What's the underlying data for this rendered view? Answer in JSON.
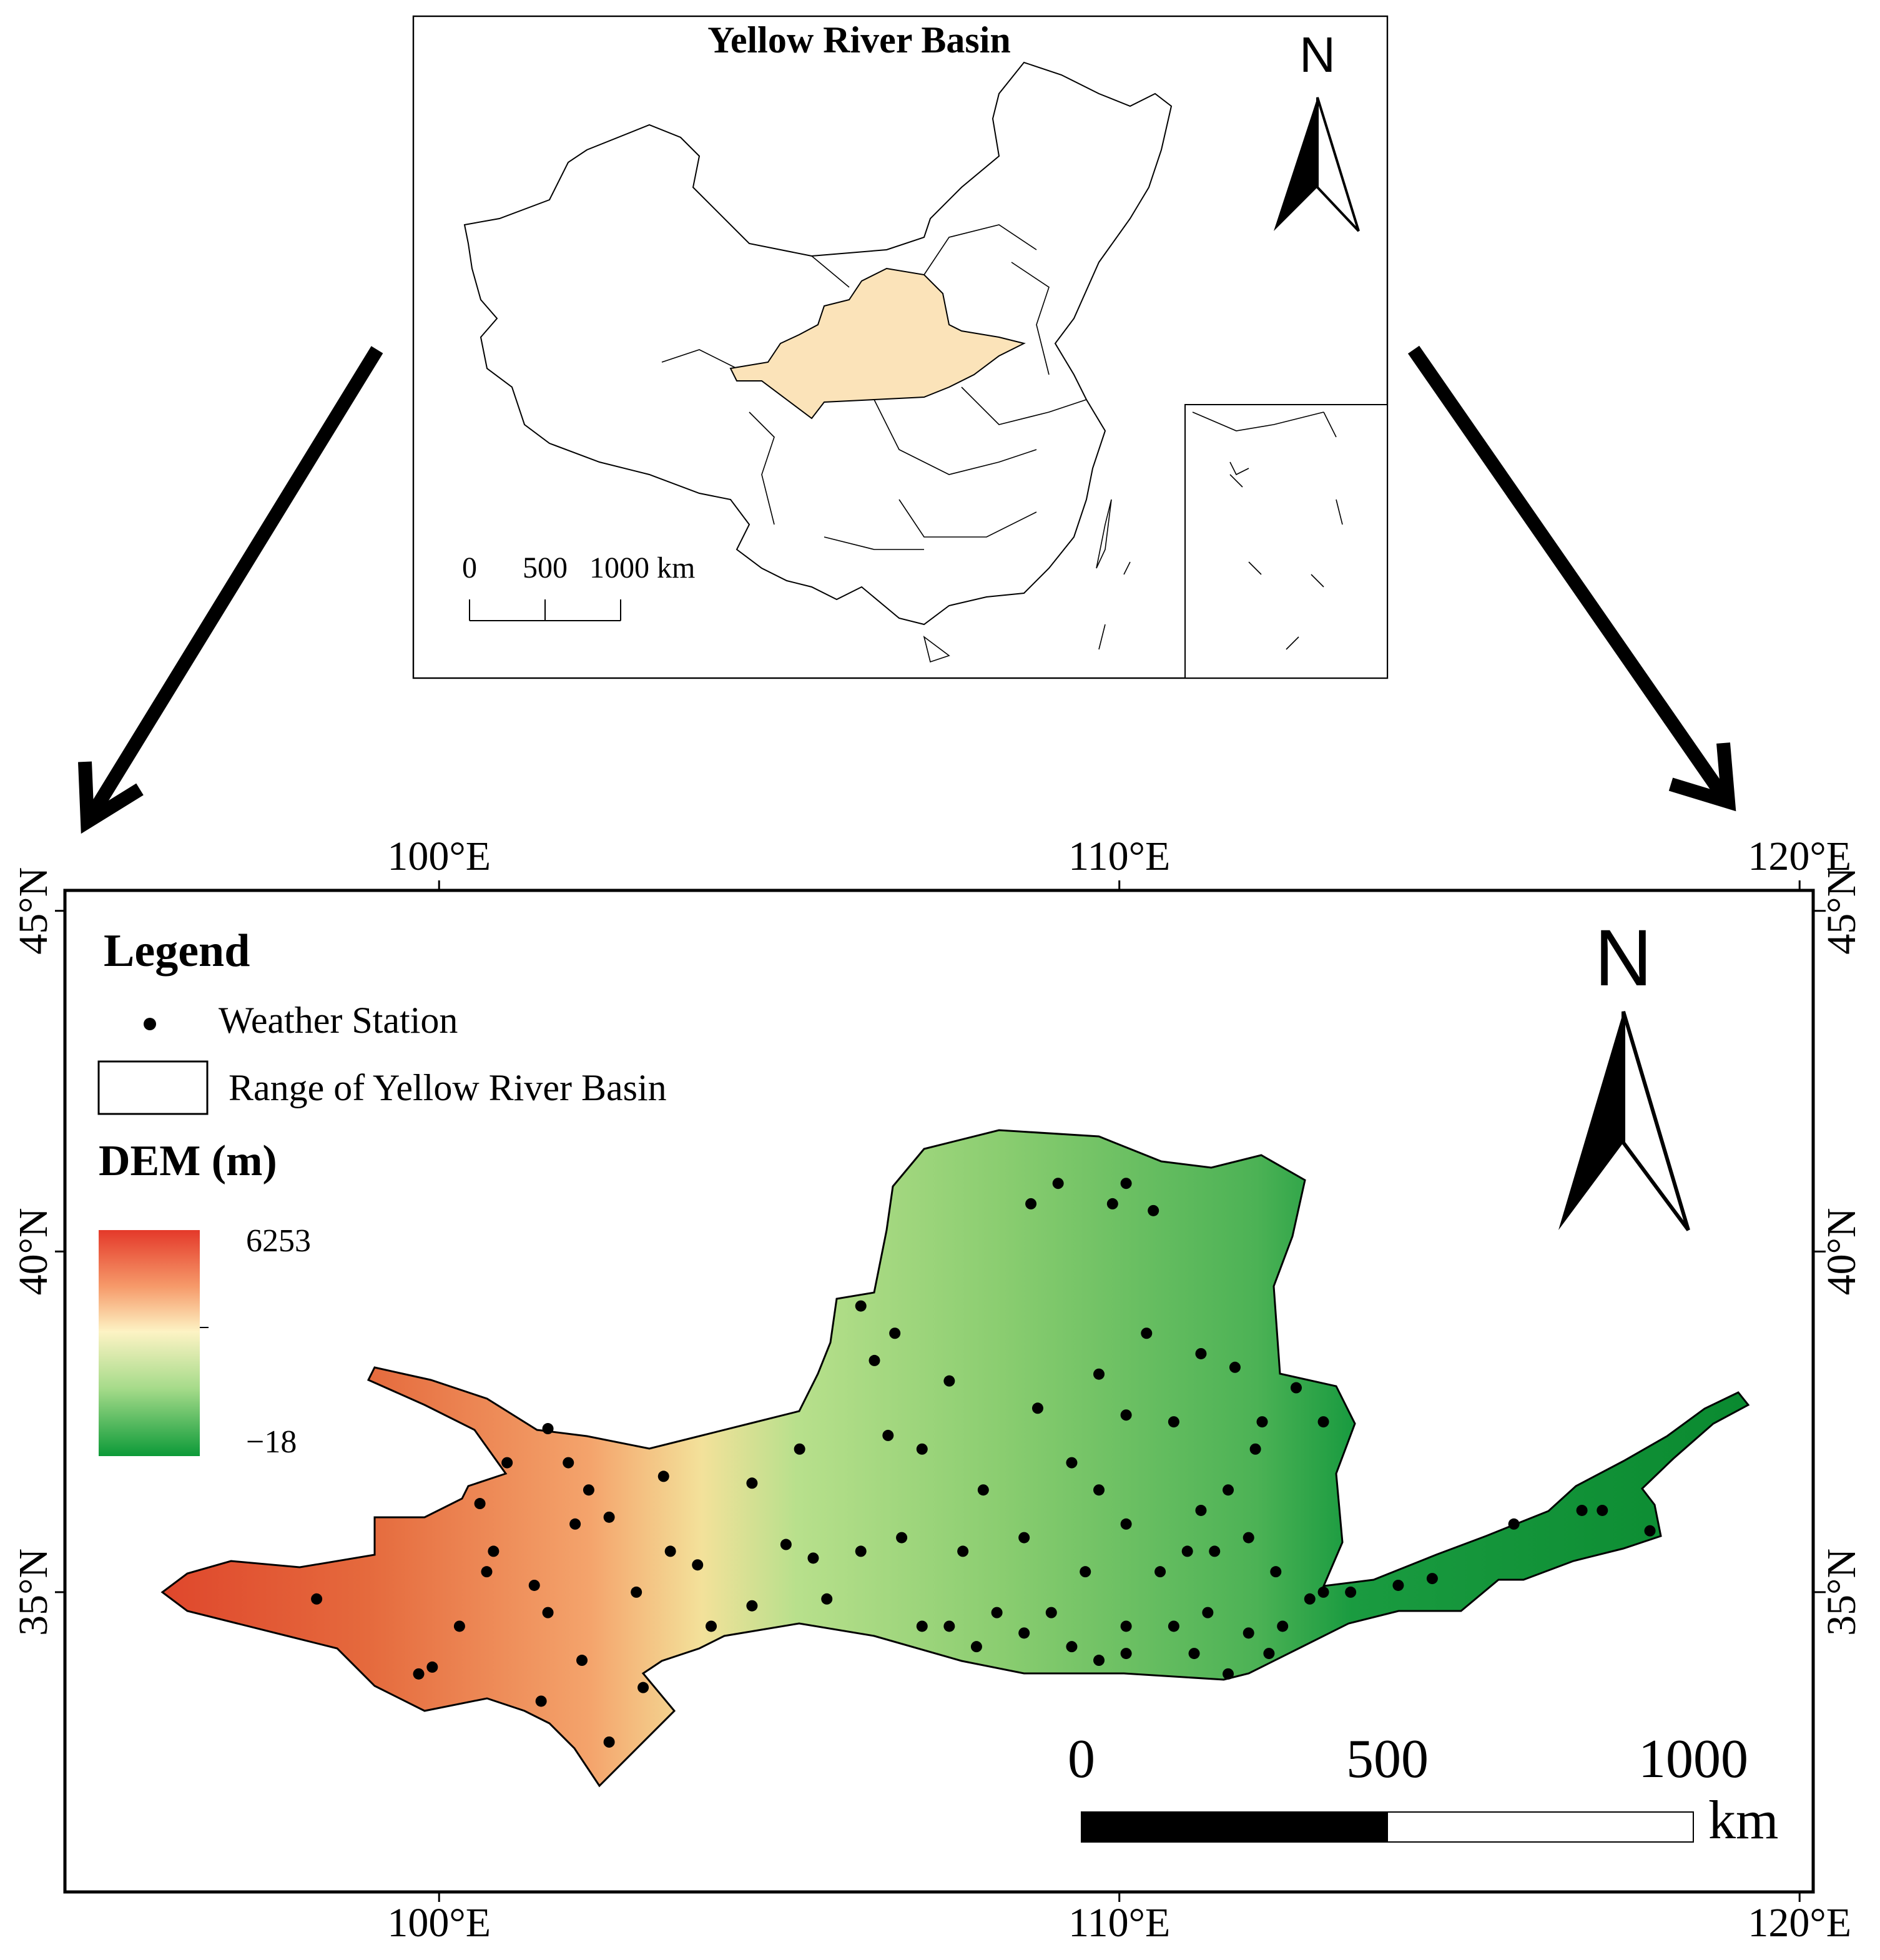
{
  "inset": {
    "title": "Yellow River Basin",
    "north": "N",
    "scale_ticks": [
      0,
      500,
      {
        "value": 1000,
        "label": "1000 km"
      }
    ]
  },
  "map": {
    "xlim": [
      94.5,
      120.2
    ],
    "ylim": [
      30.6,
      45.3
    ],
    "xticks": [
      {
        "value": 100,
        "label": "100°E"
      },
      {
        "value": 110,
        "label": "110°E"
      },
      {
        "value": 120,
        "label": "120°E"
      }
    ],
    "yticks": [
      {
        "value": 45,
        "label": "45°N"
      },
      {
        "value": 40,
        "label": "40°N"
      },
      {
        "value": 35,
        "label": "35°N"
      }
    ],
    "north": "N",
    "station_lon": [
      98.2,
      99.7,
      99.9,
      100.3,
      101.4,
      101.6,
      102.1,
      102.5,
      103.0,
      101.5,
      100.7,
      100.8,
      100.6,
      101.0,
      101.6,
      101.9,
      102.2,
      102.0,
      102.5,
      102.9,
      103.3,
      103.4,
      103.8,
      104.0,
      104.6,
      105.1,
      105.7,
      106.2,
      106.4,
      106.7,
      106.6,
      107.1,
      107.5,
      108.0,
      108.7,
      109.1,
      109.9,
      110.1,
      110.5,
      110.4,
      109.7,
      108.8,
      109.3,
      110.1,
      110.8,
      111.2,
      111.7,
      112.1,
      112.6,
      113.0,
      111.6,
      111.9,
      112.3,
      112.8,
      111.0,
      110.6,
      110.1,
      109.5,
      109.0,
      108.2,
      107.5,
      107.1,
      107.9,
      108.6,
      109.3,
      110.1,
      110.8,
      111.3,
      111.9,
      112.4,
      113.0,
      113.4,
      114.1,
      114.6,
      115.8,
      116.8,
      117.1,
      117.8,
      111.2,
      111.4,
      112.0,
      109.7,
      108.6,
      107.7,
      106.8,
      106.2,
      105.5,
      104.6,
      105.3,
      109.7,
      110.1,
      112.2,
      111.6,
      111.1
    ],
    "station_lat": [
      34.9,
      33.8,
      33.9,
      34.5,
      35.1,
      34.7,
      34.0,
      32.8,
      33.6,
      33.4,
      35.3,
      35.6,
      36.3,
      36.9,
      37.4,
      36.9,
      36.5,
      36.0,
      36.1,
      35.0,
      36.7,
      35.6,
      35.4,
      34.5,
      36.6,
      35.7,
      34.9,
      39.2,
      38.4,
      38.8,
      37.3,
      37.1,
      38.1,
      36.5,
      40.7,
      41.0,
      40.7,
      41.0,
      40.6,
      38.8,
      38.2,
      37.7,
      36.9,
      37.6,
      37.5,
      38.5,
      38.3,
      37.5,
      38.0,
      37.5,
      36.5,
      35.8,
      35.3,
      34.9,
      35.6,
      35.3,
      36.0,
      35.3,
      34.7,
      34.7,
      34.5,
      34.5,
      34.2,
      34.4,
      34.2,
      34.5,
      34.5,
      34.7,
      34.4,
      34.5,
      35.0,
      35.0,
      35.1,
      35.2,
      36.0,
      36.2,
      36.2,
      35.9,
      36.2,
      35.6,
      37.1,
      36.5,
      35.8,
      35.6,
      35.8,
      35.6,
      35.5,
      34.8,
      37.1,
      34.0,
      34.1,
      34.1,
      33.8,
      34.1
    ]
  },
  "legend": {
    "title": "Legend",
    "station": "Weather Station",
    "range": "Range of Yellow River Basin",
    "dem_title": "DEM (m)",
    "dem_max": 6253,
    "dem_min": {
      "value": -18,
      "label": "−18"
    }
  },
  "scale": {
    "ticks": [
      0,
      500,
      1000
    ],
    "unit": "km"
  }
}
